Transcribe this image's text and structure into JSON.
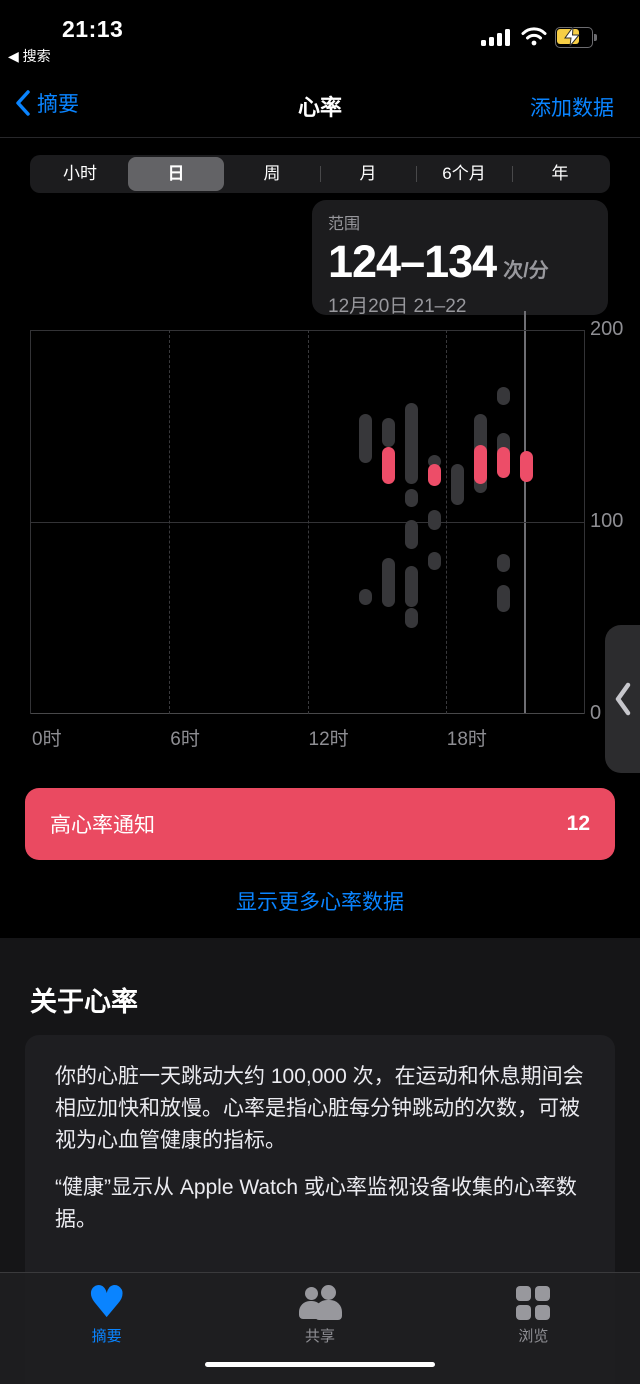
{
  "status_bar": {
    "time": "21:13",
    "back_to_app": "◀ 搜索",
    "icons": [
      "cellular-signal-icon",
      "wifi-icon",
      "battery-charging-icon"
    ]
  },
  "nav": {
    "back_label": "摘要",
    "title": "心率",
    "action_label": "添加数据"
  },
  "segments": {
    "items": [
      "小时",
      "日",
      "周",
      "月",
      "6个月",
      "年"
    ],
    "selected_index": 1
  },
  "tooltip": {
    "label": "范围",
    "value": "124–134",
    "unit": "次/分",
    "date": "12月20日 21–22"
  },
  "chart_data": {
    "type": "scatter",
    "title": "心率（日视图，每小时范围胶囊图）",
    "x_axis": {
      "label_unit": "时",
      "range_hours": [
        0,
        24
      ],
      "ticks": [
        {
          "hour": 0,
          "label": "0时"
        },
        {
          "hour": 6,
          "label": "6时"
        },
        {
          "hour": 12,
          "label": "12时"
        },
        {
          "hour": 18,
          "label": "18时"
        }
      ]
    },
    "y_axis": {
      "unit": "次/分",
      "range": [
        0,
        200
      ],
      "ticks": [
        {
          "value": 200,
          "label": "200"
        },
        {
          "value": 100,
          "label": "100"
        },
        {
          "value": 0,
          "label": "0"
        }
      ]
    },
    "selected": {
      "hour": 21,
      "hour_label": "21-22",
      "value_range": [
        124,
        134
      ]
    },
    "series": [
      {
        "hour": 14,
        "segments": [
          {
            "lo": 134,
            "hi": 153,
            "color": "gray"
          },
          {
            "lo": 60,
            "hi": 62,
            "color": "gray"
          }
        ]
      },
      {
        "hour": 15,
        "segments": [
          {
            "lo": 142,
            "hi": 151,
            "color": "gray"
          },
          {
            "lo": 123,
            "hi": 136,
            "color": "red"
          },
          {
            "lo": 59,
            "hi": 78,
            "color": "gray"
          }
        ]
      },
      {
        "hour": 16,
        "segments": [
          {
            "lo": 123,
            "hi": 159,
            "color": "gray"
          },
          {
            "lo": 111,
            "hi": 114,
            "color": "gray"
          },
          {
            "lo": 89,
            "hi": 98,
            "color": "gray"
          },
          {
            "lo": 59,
            "hi": 74,
            "color": "gray"
          },
          {
            "lo": 48,
            "hi": 52,
            "color": "gray"
          }
        ]
      },
      {
        "hour": 17,
        "segments": [
          {
            "lo": 131,
            "hi": 132,
            "color": "gray"
          },
          {
            "lo": 122,
            "hi": 127,
            "color": "red"
          },
          {
            "lo": 99,
            "hi": 103,
            "color": "gray"
          },
          {
            "lo": 78,
            "hi": 81,
            "color": "gray"
          }
        ]
      },
      {
        "hour": 18,
        "segments": [
          {
            "lo": 112,
            "hi": 127,
            "color": "gray"
          }
        ]
      },
      {
        "hour": 19,
        "segments": [
          {
            "lo": 118,
            "hi": 153,
            "color": "gray"
          },
          {
            "lo": 123,
            "hi": 137,
            "color": "red"
          }
        ]
      },
      {
        "hour": 20,
        "segments": [
          {
            "lo": 164,
            "hi": 167,
            "color": "gray"
          },
          {
            "lo": 137,
            "hi": 143,
            "color": "gray"
          },
          {
            "lo": 126,
            "hi": 136,
            "color": "red"
          },
          {
            "lo": 77,
            "hi": 80,
            "color": "gray"
          },
          {
            "lo": 56,
            "hi": 64,
            "color": "gray"
          }
        ]
      },
      {
        "hour": 21,
        "segments": [
          {
            "lo": 124,
            "hi": 134,
            "color": "red"
          }
        ]
      }
    ]
  },
  "banner": {
    "label": "高心率通知",
    "count": "12"
  },
  "more_link_label": "显示更多心率数据",
  "about": {
    "heading": "关于心率",
    "paragraphs": [
      "你的心脏一天跳动大约 100,000 次，在运动和休息期间会相应加快和放慢。心率是指心脏每分钟跳动的次数，可被视为心血管健康的指标。",
      "“健康”显示从 Apple Watch 或心率监视设备收集的心率数据。"
    ]
  },
  "tab_bar": {
    "items": [
      {
        "label": "摘要",
        "icon": "heart-icon",
        "active": true
      },
      {
        "label": "共享",
        "icon": "people-icon",
        "active": false
      },
      {
        "label": "浏览",
        "icon": "grid-icon",
        "active": false
      }
    ]
  },
  "colors": {
    "accent_blue": "#0a84ff",
    "heart_red": "#ed4d68",
    "banner_red": "#ea4a61",
    "capsule_gray": "#37373a",
    "battery_yellow": "#f7ce45"
  }
}
